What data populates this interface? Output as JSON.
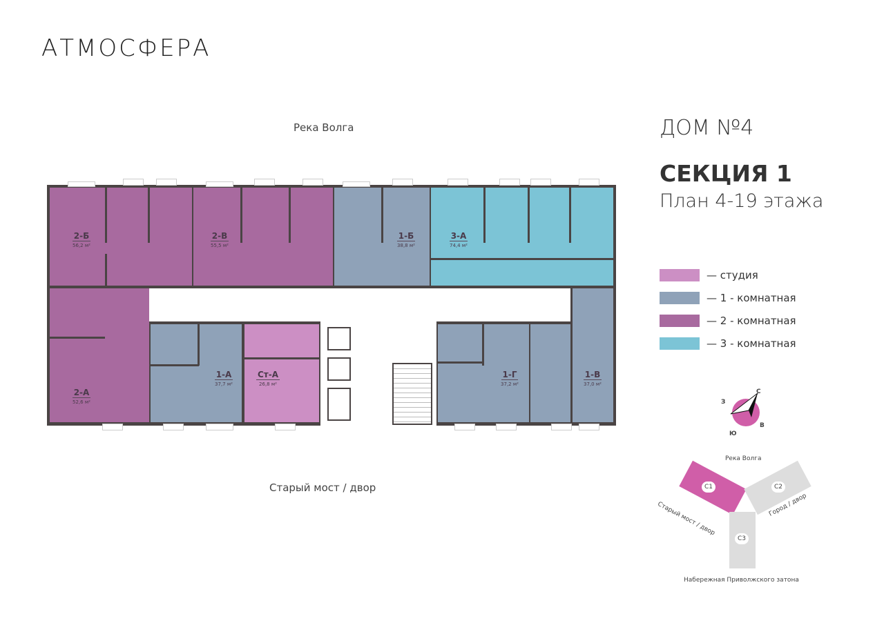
{
  "logo": "АТМОСФЕРА",
  "top_side": "Река Волга",
  "bottom_side": "Старый мост / двор",
  "house": "ДОМ №4",
  "section": "СЕКЦИЯ 1",
  "plan": "План 4-19 этажа",
  "colors": {
    "studio": "#cc8fc4",
    "one": "#8fa2b8",
    "two": "#a86a9f",
    "three": "#7cc4d6",
    "walls": "#4a4444",
    "accent": "#d05ea8"
  },
  "apartments": [
    {
      "id": "2-Б",
      "area": "56,2 м²",
      "type": "two"
    },
    {
      "id": "2-В",
      "area": "55,5 м²",
      "type": "two"
    },
    {
      "id": "1-Б",
      "area": "38,8 м²",
      "type": "one"
    },
    {
      "id": "3-А",
      "area": "74,4 м²",
      "type": "three"
    },
    {
      "id": "2-А",
      "area": "52,6 м²",
      "type": "two"
    },
    {
      "id": "1-А",
      "area": "37,7 м²",
      "type": "one"
    },
    {
      "id": "Ст-А",
      "area": "26,8 м²",
      "type": "studio"
    },
    {
      "id": "1-Г",
      "area": "37,2 м²",
      "type": "one"
    },
    {
      "id": "1-В",
      "area": "37,0 м²",
      "type": "one"
    }
  ],
  "legend": [
    {
      "label": "— студия",
      "type": "studio"
    },
    {
      "label": "— 1 - комнатная",
      "type": "one"
    },
    {
      "label": "— 2 - комнатная",
      "type": "two"
    },
    {
      "label": "— 3 - комнатная",
      "type": "three"
    }
  ],
  "compass": {
    "n": "С",
    "s": "Ю",
    "w": "З",
    "e": "В"
  },
  "site": {
    "top": "Река Волга",
    "left": "Старый мост / двор",
    "right": "Город / двор",
    "bottom": "Набережная Приволжского затона",
    "c1": "С1",
    "c2": "С2",
    "c3": "С3"
  }
}
